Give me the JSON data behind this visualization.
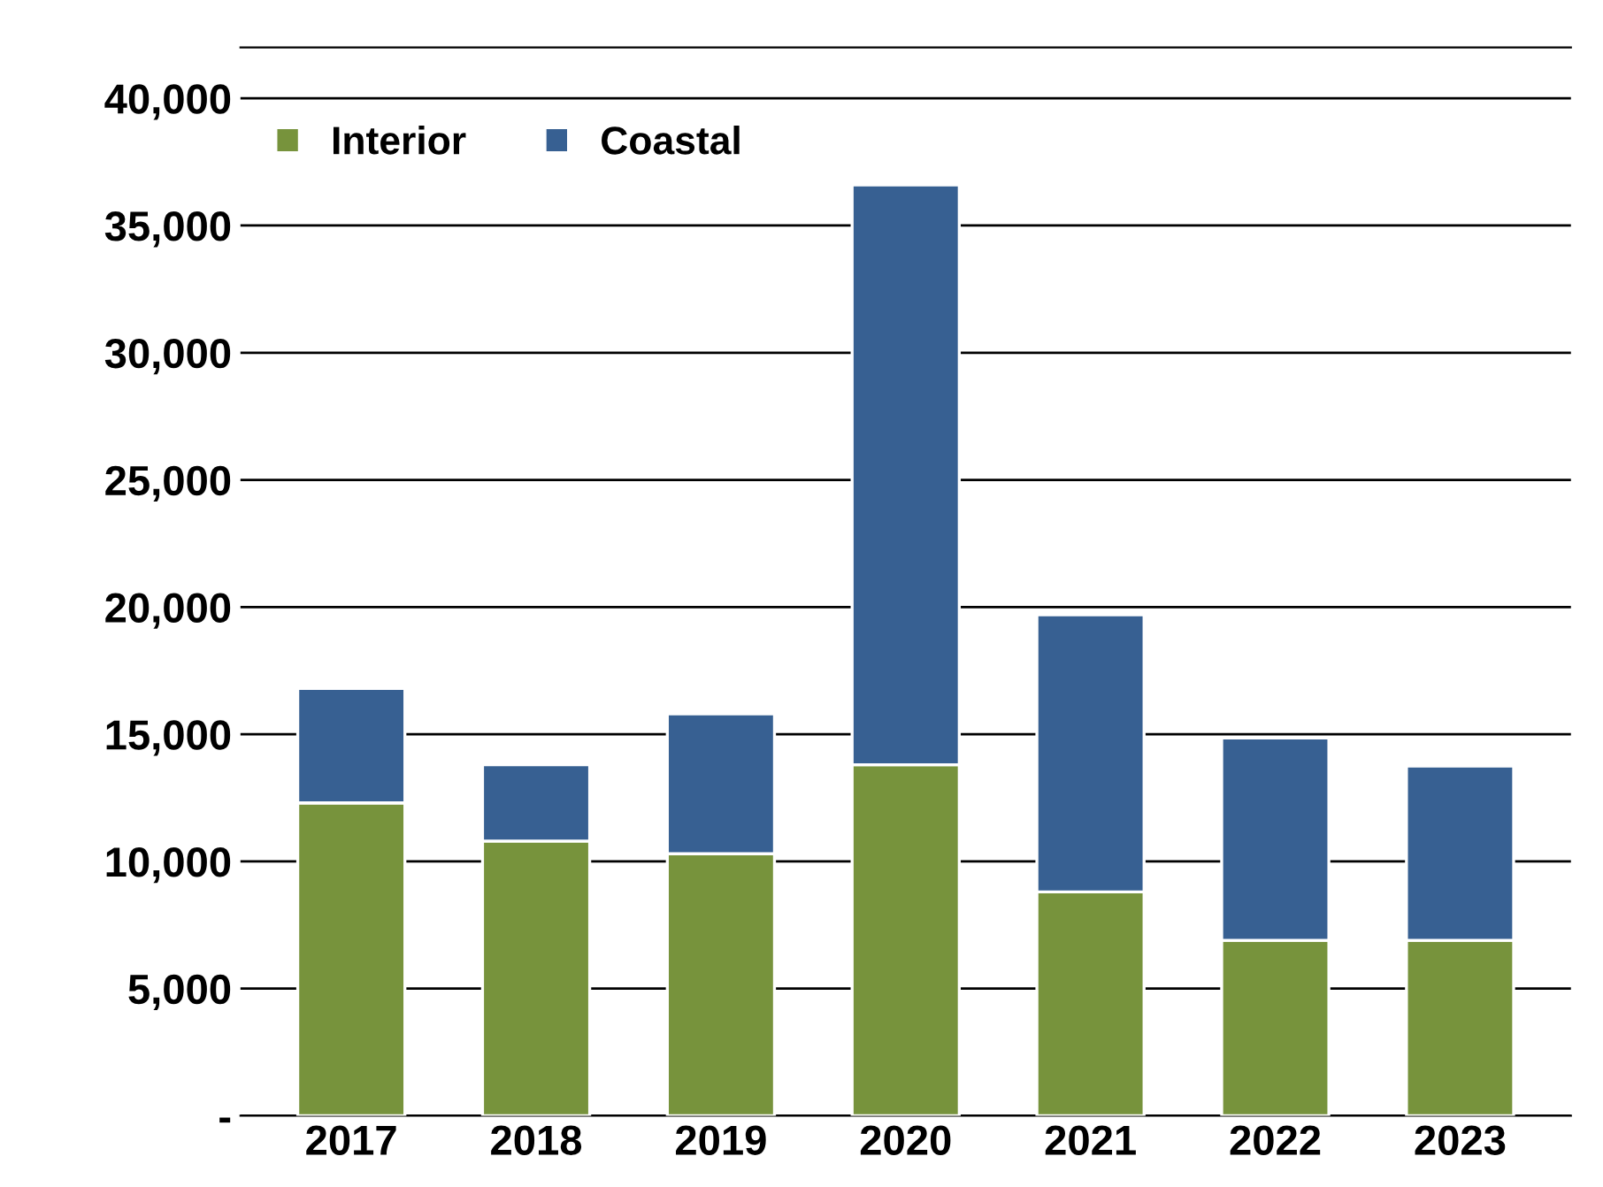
{
  "chart_data": {
    "type": "bar",
    "stacked": true,
    "categories": [
      "2017",
      "2018",
      "2019",
      "2020",
      "2021",
      "2022",
      "2023"
    ],
    "series": [
      {
        "name": "Interior",
        "color": "#77933c",
        "values": [
          12300,
          10800,
          10300,
          13800,
          8800,
          6900,
          6900
        ]
      },
      {
        "name": "Coastal",
        "color": "#376092",
        "values": [
          4500,
          3000,
          5500,
          22800,
          10900,
          7950,
          6850
        ]
      }
    ],
    "ylim": [
      0,
      42000
    ],
    "yticks": [
      {
        "value": 0,
        "label": "-"
      },
      {
        "value": 5000,
        "label": "5,000"
      },
      {
        "value": 10000,
        "label": "10,000"
      },
      {
        "value": 15000,
        "label": "15,000"
      },
      {
        "value": 20000,
        "label": "20,000"
      },
      {
        "value": 25000,
        "label": "25,000"
      },
      {
        "value": 30000,
        "label": "30,000"
      },
      {
        "value": 35000,
        "label": "35,000"
      },
      {
        "value": 40000,
        "label": "40,000"
      }
    ],
    "grid": "y",
    "legend": "top left"
  }
}
